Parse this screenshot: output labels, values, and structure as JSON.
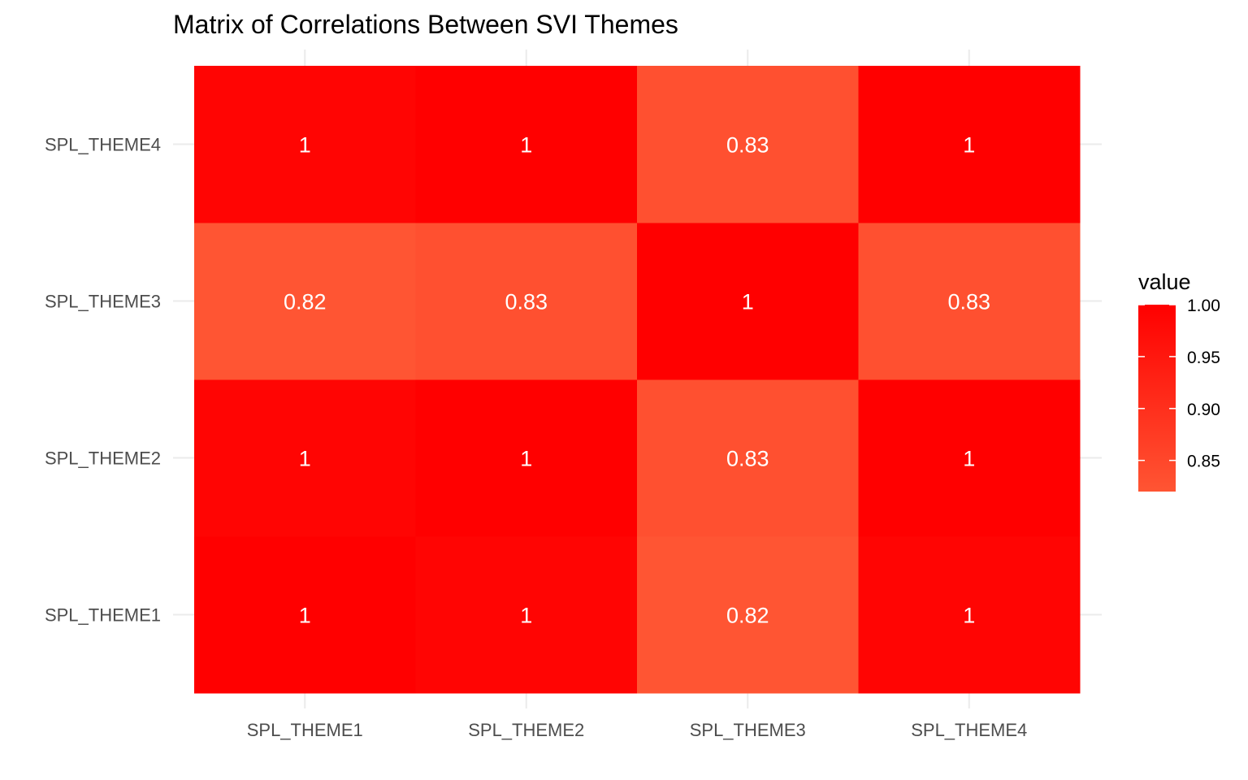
{
  "chart_data": {
    "type": "heatmap",
    "title": "Matrix of Correlations Between SVI Themes",
    "x_categories": [
      "SPL_THEME1",
      "SPL_THEME2",
      "SPL_THEME3",
      "SPL_THEME4"
    ],
    "y_categories": [
      "SPL_THEME1",
      "SPL_THEME2",
      "SPL_THEME3",
      "SPL_THEME4"
    ],
    "cells": [
      {
        "x": "SPL_THEME1",
        "y": "SPL_THEME1",
        "value": 1.0,
        "label": "1"
      },
      {
        "x": "SPL_THEME2",
        "y": "SPL_THEME1",
        "value": 0.99,
        "label": "1"
      },
      {
        "x": "SPL_THEME3",
        "y": "SPL_THEME1",
        "value": 0.82,
        "label": "0.82"
      },
      {
        "x": "SPL_THEME4",
        "y": "SPL_THEME1",
        "value": 0.99,
        "label": "1"
      },
      {
        "x": "SPL_THEME1",
        "y": "SPL_THEME2",
        "value": 0.99,
        "label": "1"
      },
      {
        "x": "SPL_THEME2",
        "y": "SPL_THEME2",
        "value": 1.0,
        "label": "1"
      },
      {
        "x": "SPL_THEME3",
        "y": "SPL_THEME2",
        "value": 0.83,
        "label": "0.83"
      },
      {
        "x": "SPL_THEME4",
        "y": "SPL_THEME2",
        "value": 1.0,
        "label": "1"
      },
      {
        "x": "SPL_THEME1",
        "y": "SPL_THEME3",
        "value": 0.82,
        "label": "0.82"
      },
      {
        "x": "SPL_THEME2",
        "y": "SPL_THEME3",
        "value": 0.83,
        "label": "0.83"
      },
      {
        "x": "SPL_THEME3",
        "y": "SPL_THEME3",
        "value": 1.0,
        "label": "1"
      },
      {
        "x": "SPL_THEME4",
        "y": "SPL_THEME3",
        "value": 0.83,
        "label": "0.83"
      },
      {
        "x": "SPL_THEME1",
        "y": "SPL_THEME4",
        "value": 0.99,
        "label": "1"
      },
      {
        "x": "SPL_THEME2",
        "y": "SPL_THEME4",
        "value": 1.0,
        "label": "1"
      },
      {
        "x": "SPL_THEME3",
        "y": "SPL_THEME4",
        "value": 0.83,
        "label": "0.83"
      },
      {
        "x": "SPL_THEME4",
        "y": "SPL_THEME4",
        "value": 1.0,
        "label": "1"
      }
    ],
    "legend": {
      "title": "value",
      "placement": "right",
      "range": [
        0.82,
        1.0
      ],
      "ticks": [
        {
          "value": 1.0,
          "label": "1.00"
        },
        {
          "value": 0.95,
          "label": "0.95"
        },
        {
          "value": 0.9,
          "label": "0.90"
        },
        {
          "value": 0.85,
          "label": "0.85"
        }
      ]
    },
    "colors": {
      "high": "#ff0000",
      "low": "#ff5533",
      "cell_text": "#ffffff",
      "grid": "#ebebeb"
    },
    "grid": true
  }
}
